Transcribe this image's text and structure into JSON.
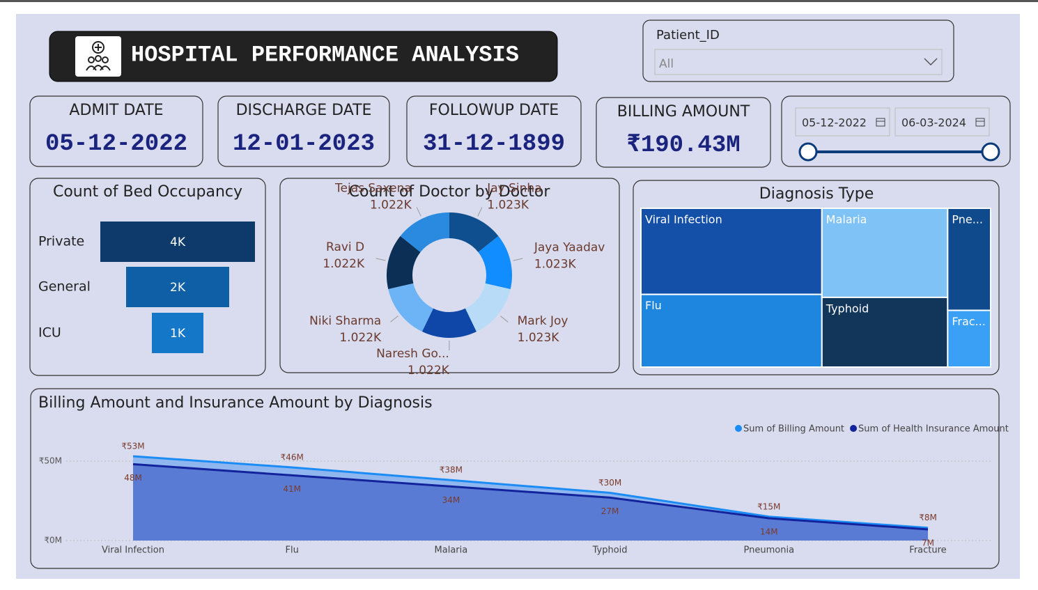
{
  "header": {
    "title": "HOSPITAL PERFORMANCE ANALYSIS"
  },
  "patient_slicer": {
    "label": "Patient_ID",
    "value": "All"
  },
  "cards": [
    {
      "label": "ADMIT DATE",
      "value": "05-12-2022"
    },
    {
      "label": "DISCHARGE DATE",
      "value": "12-01-2023"
    },
    {
      "label": "FOLLOWUP DATE",
      "value": "31-12-1899"
    },
    {
      "label": "BILLING AMOUNT",
      "value": "₹190.43M"
    }
  ],
  "date_range": {
    "start": "05-12-2022",
    "end": "06-03-2024"
  },
  "chart_data": [
    {
      "type": "funnel",
      "title": "Count of Bed Occupancy",
      "categories": [
        "Private",
        "General",
        "ICU"
      ],
      "values": [
        3600,
        2400,
        1200
      ],
      "value_labels": [
        "4K",
        "2K",
        "1K"
      ],
      "colors": [
        "#0d3a6b",
        "#0f5fa6",
        "#1477c8"
      ]
    },
    {
      "type": "donut",
      "title": "Count of Doctor by Doctor",
      "categories": [
        "Jay Sinha",
        "Jaya Yaadav",
        "Mark Joy",
        "Naresh Go...",
        "Niki Sharma",
        "Ravi D",
        "Tejas Saxena"
      ],
      "values": [
        1023,
        1023,
        1023,
        1022,
        1022,
        1022,
        1022
      ],
      "value_labels": [
        "1.023K",
        "1.023K",
        "1.023K",
        "1.022K",
        "1.022K",
        "1.022K",
        "1.022K"
      ],
      "colors": [
        "#0f4f8f",
        "#118dff",
        "#b8dcf8",
        "#0f47a8",
        "#6cb4f5",
        "#0c2f55",
        "#2a8ae0"
      ]
    },
    {
      "type": "treemap",
      "title": "Diagnosis Type",
      "categories": [
        "Viral Infection",
        "Flu",
        "Malaria",
        "Typhoid",
        "Pne...",
        "Frac..."
      ],
      "values": [
        32,
        27,
        23,
        18,
        9,
        5
      ],
      "colors": [
        "#1450a8",
        "#1f86e0",
        "#7fc2f5",
        "#12355a",
        "#0f4a8c",
        "#3aa0f5"
      ]
    },
    {
      "type": "area",
      "title": "Billing Amount and Insurance Amount by Diagnosis",
      "categories": [
        "Viral Infection",
        "Flu",
        "Malaria",
        "Typhoid",
        "Pneumonia",
        "Fracture"
      ],
      "series": [
        {
          "name": "Sum of Billing Amount",
          "color": "#1b8cf5",
          "fill": "#8fb6ef",
          "values": [
            53,
            46,
            38,
            30,
            15,
            8
          ],
          "value_labels": [
            "₹53M",
            "₹46M",
            "₹38M",
            "₹30M",
            "₹15M",
            "₹8M"
          ]
        },
        {
          "name": "Sum of Health Insurance Amount",
          "color": "#13239c",
          "fill": "#5a7bd4",
          "values": [
            48,
            41,
            34,
            27,
            14,
            7
          ],
          "value_labels": [
            "48M",
            "41M",
            "34M",
            "27M",
            "14M",
            "7M"
          ]
        }
      ],
      "ylim": [
        0,
        60
      ],
      "yticks": [
        {
          "value": 0,
          "label": "₹0M"
        },
        {
          "value": 50,
          "label": "₹50M"
        }
      ],
      "grid": true
    }
  ]
}
